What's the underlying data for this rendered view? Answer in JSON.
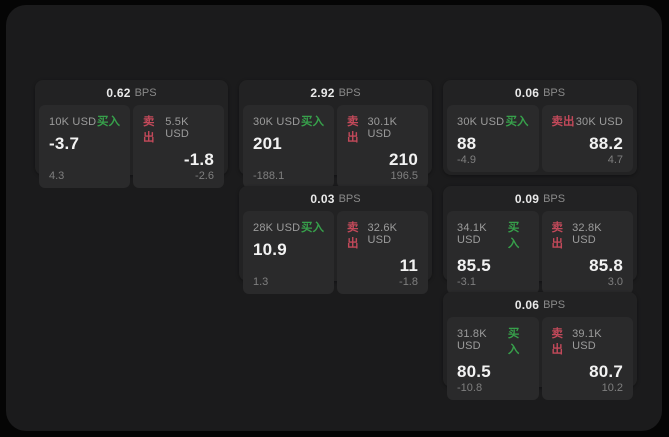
{
  "labels": {
    "bps": "BPS",
    "buy": "买入",
    "sell": "卖出"
  },
  "colors": {
    "buy": "#37a04b",
    "sell": "#c2495a",
    "window_bg": "#1b1b1c",
    "card_bg": "#222223",
    "panel_bg": "#2a2a2b"
  },
  "cards": [
    {
      "bps": "0.62",
      "buy": {
        "amount": "10K USD",
        "price": "-3.7",
        "change": "4.3"
      },
      "sell": {
        "amount": "5.5K USD",
        "price": "-1.8",
        "change": "-2.6"
      }
    },
    {
      "bps": "2.92",
      "buy": {
        "amount": "30K USD",
        "price": "201",
        "change": "-188.1"
      },
      "sell": {
        "amount": "30.1K USD",
        "price": "210",
        "change": "196.5"
      }
    },
    {
      "bps": "0.06",
      "buy": {
        "amount": "30K USD",
        "price": "88",
        "change": "-4.9"
      },
      "sell": {
        "amount": "30K USD",
        "price": "88.2",
        "change": "4.7"
      }
    },
    {
      "bps": "0.03",
      "buy": {
        "amount": "28K USD",
        "price": "10.9",
        "change": "1.3"
      },
      "sell": {
        "amount": "32.6K USD",
        "price": "11",
        "change": "-1.8"
      }
    },
    {
      "bps": "0.09",
      "buy": {
        "amount": "34.1K USD",
        "price": "85.5",
        "change": "-3.1"
      },
      "sell": {
        "amount": "32.8K USD",
        "price": "85.8",
        "change": "3.0"
      }
    },
    {
      "bps": "0.06",
      "buy": {
        "amount": "31.8K USD",
        "price": "80.5",
        "change": "-10.8"
      },
      "sell": {
        "amount": "39.1K USD",
        "price": "80.7",
        "change": "10.2"
      }
    }
  ]
}
